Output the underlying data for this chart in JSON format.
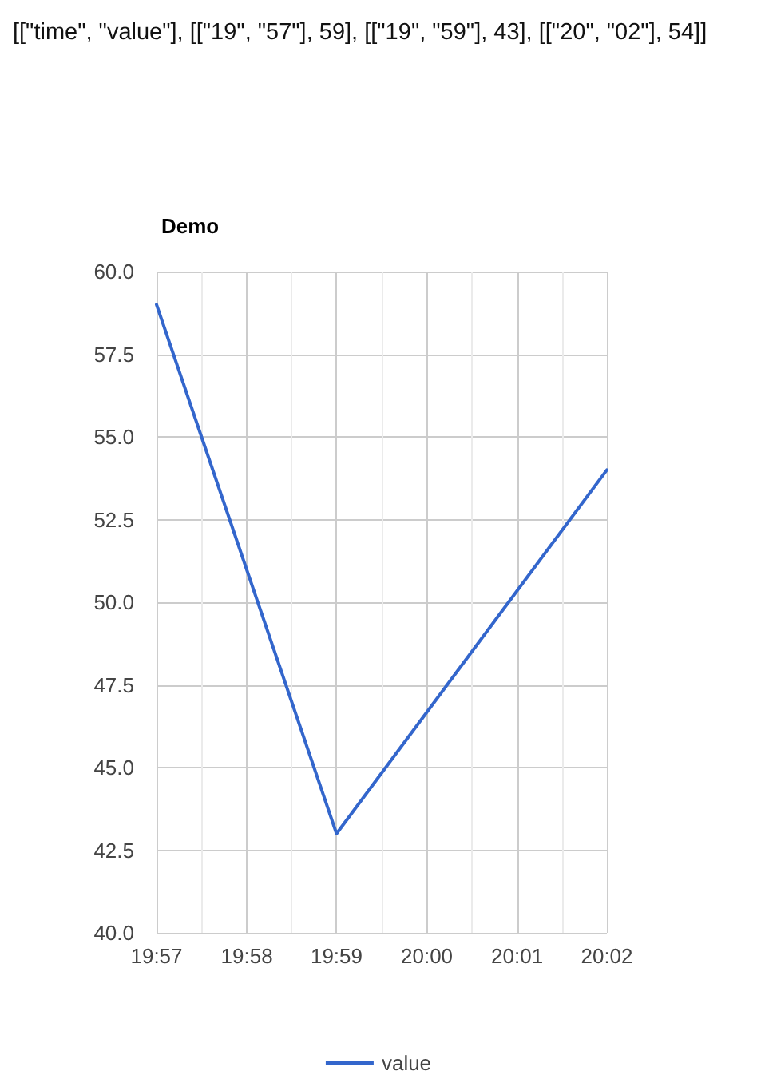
{
  "chart_data": {
    "type": "line",
    "title": "Demo",
    "annotations": [
      "[[\"time\", \"value\"], [[\"19\", \"57\"], 59], [[\"19\", \"59\"], 43], [[\"20\", \"02\"], 54]]"
    ],
    "x": [
      19.95,
      19.9833,
      20.0333
    ],
    "series": [
      {
        "name": "value",
        "color": "#3366cc",
        "values": [
          59,
          43,
          54
        ]
      }
    ],
    "xlim": [
      19.95,
      20.0333
    ],
    "xticks": [
      {
        "value": 19.95,
        "label": "19:57"
      },
      {
        "value": 19.9583,
        "label": null
      },
      {
        "value": 19.9667,
        "label": "19:58"
      },
      {
        "value": 19.975,
        "label": null
      },
      {
        "value": 19.9833,
        "label": "19:59"
      },
      {
        "value": 19.9917,
        "label": null
      },
      {
        "value": 20,
        "label": "20:00"
      },
      {
        "value": 20.0083,
        "label": null
      },
      {
        "value": 20.0167,
        "label": "20:01"
      },
      {
        "value": 20.025,
        "label": null
      },
      {
        "value": 20.0333,
        "label": "20:02"
      }
    ],
    "ylim": [
      40,
      60
    ],
    "yticks": [
      {
        "value": 40,
        "label": "40.0"
      },
      {
        "value": 42.5,
        "label": "42.5"
      },
      {
        "value": 45,
        "label": "45.0"
      },
      {
        "value": 47.5,
        "label": "47.5"
      },
      {
        "value": 50,
        "label": "50.0"
      },
      {
        "value": 52.5,
        "label": "52.5"
      },
      {
        "value": 55,
        "label": "55.0"
      },
      {
        "value": 57.5,
        "label": "57.5"
      },
      {
        "value": 60,
        "label": "60.0"
      }
    ],
    "grid": true,
    "legend": "bottom",
    "marker": "none",
    "line_style": "solid"
  }
}
